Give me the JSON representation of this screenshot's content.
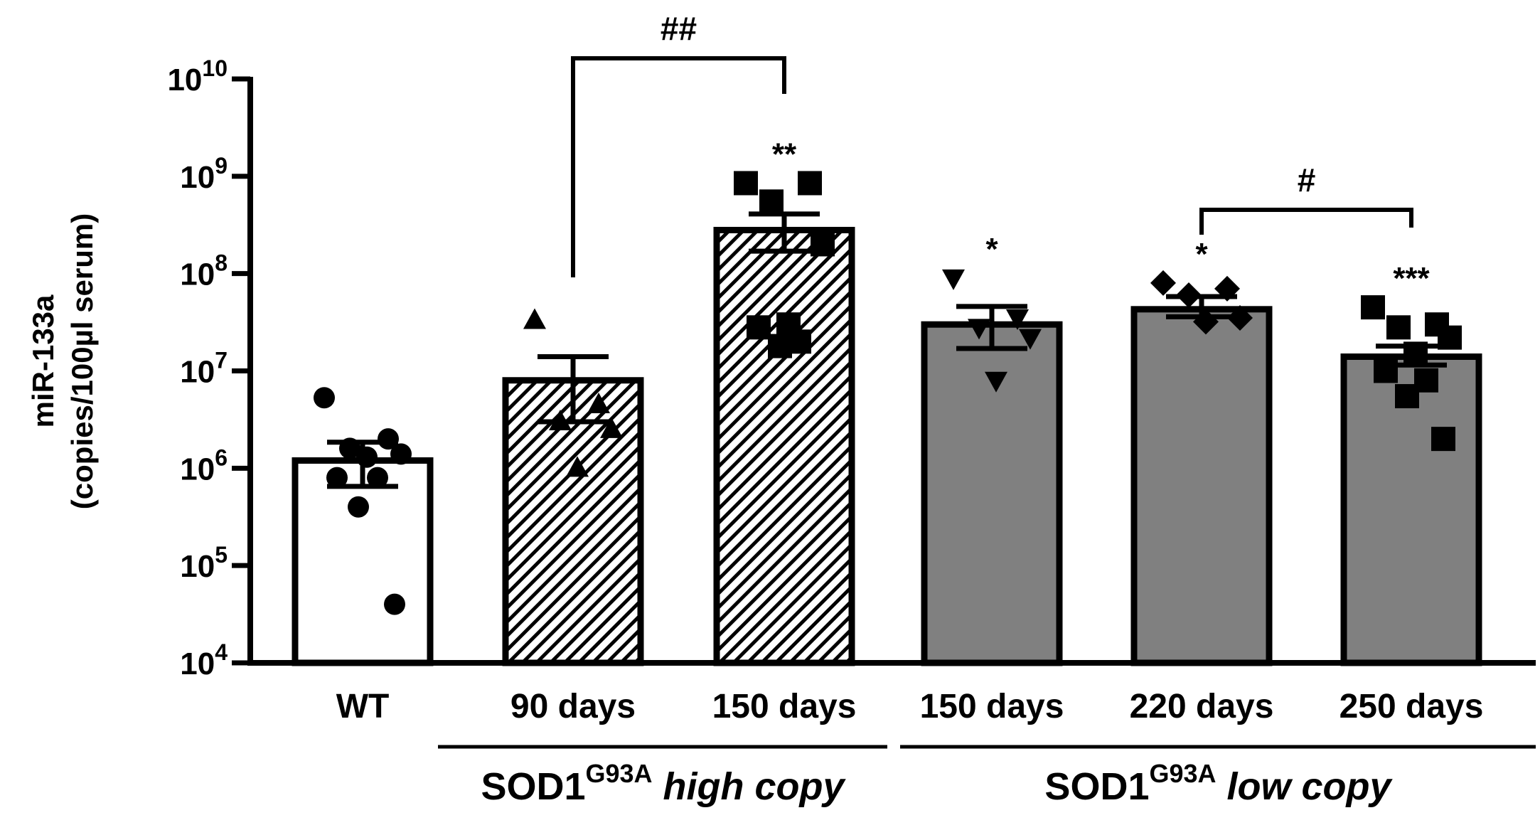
{
  "chart_data": {
    "type": "bar",
    "yscale": "log",
    "ylim": [
      10000,
      10000000000
    ],
    "ylabel": "miR-133a",
    "ylabel2": "(copies/100µl serum)",
    "yticks": [
      {
        "value": 10000,
        "base": "10",
        "exp": "4"
      },
      {
        "value": 100000,
        "base": "10",
        "exp": "5"
      },
      {
        "value": 1000000,
        "base": "10",
        "exp": "6"
      },
      {
        "value": 10000000,
        "base": "10",
        "exp": "7"
      },
      {
        "value": 100000000,
        "base": "10",
        "exp": "8"
      },
      {
        "value": 1000000000,
        "base": "10",
        "exp": "9"
      },
      {
        "value": 10000000000,
        "base": "10",
        "exp": "10"
      }
    ],
    "bars": [
      {
        "label": "WT",
        "mean": 1200000,
        "sem_low": 650000,
        "sem_high": 1850000,
        "fill": "white",
        "marker": "circle",
        "points": [
          5300000,
          2000000,
          1600000,
          1400000,
          1300000,
          800000,
          800000,
          400000,
          40000
        ],
        "sig": ""
      },
      {
        "label": "90 days",
        "mean": 8000000,
        "sem_low": 3000000,
        "sem_high": 14000000,
        "fill": "hatch",
        "marker": "triangle",
        "points": [
          33000000,
          4500000,
          3000000,
          2500000,
          1000000
        ],
        "sig": ""
      },
      {
        "label": "150 days",
        "mean": 280000000,
        "sem_low": 170000000,
        "sem_high": 410000000,
        "fill": "hatch",
        "marker": "square",
        "points": [
          850000000,
          850000000,
          550000000,
          200000000,
          30000000,
          28000000,
          20000000,
          18000000
        ],
        "sig": "**"
      },
      {
        "label": "150 days",
        "mean": 30000000,
        "sem_low": 17000000,
        "sem_high": 46000000,
        "fill": "gray",
        "marker": "triangle-down",
        "points": [
          90000000,
          35000000,
          28000000,
          22000000,
          8000000
        ],
        "sig": "*"
      },
      {
        "label": "220 days",
        "mean": 43000000,
        "sem_low": 36000000,
        "sem_high": 58000000,
        "fill": "gray",
        "marker": "diamond",
        "points": [
          80000000,
          70000000,
          60000000,
          35000000,
          32000000
        ],
        "sig": "*"
      },
      {
        "label": "250 days",
        "mean": 14000000,
        "sem_low": 11500000,
        "sem_high": 18000000,
        "fill": "gray",
        "marker": "square",
        "points": [
          45000000,
          30000000,
          28000000,
          22000000,
          15000000,
          10000000,
          8000000,
          5500000,
          2000000
        ],
        "sig": "***"
      }
    ],
    "brackets": [
      {
        "from": 1,
        "to": 2,
        "label": "##"
      },
      {
        "from": 4,
        "to": 5,
        "label": "#"
      }
    ],
    "groups": [
      {
        "from": 1,
        "to": 2,
        "name": "SOD1",
        "sup": "G93A",
        "suffix": "high copy"
      },
      {
        "from": 3,
        "to": 5,
        "name": "SOD1",
        "sup": "G93A",
        "suffix": "low copy"
      }
    ],
    "colors": {
      "gray": "#808080",
      "stroke": "#000000",
      "white": "#ffffff"
    }
  }
}
